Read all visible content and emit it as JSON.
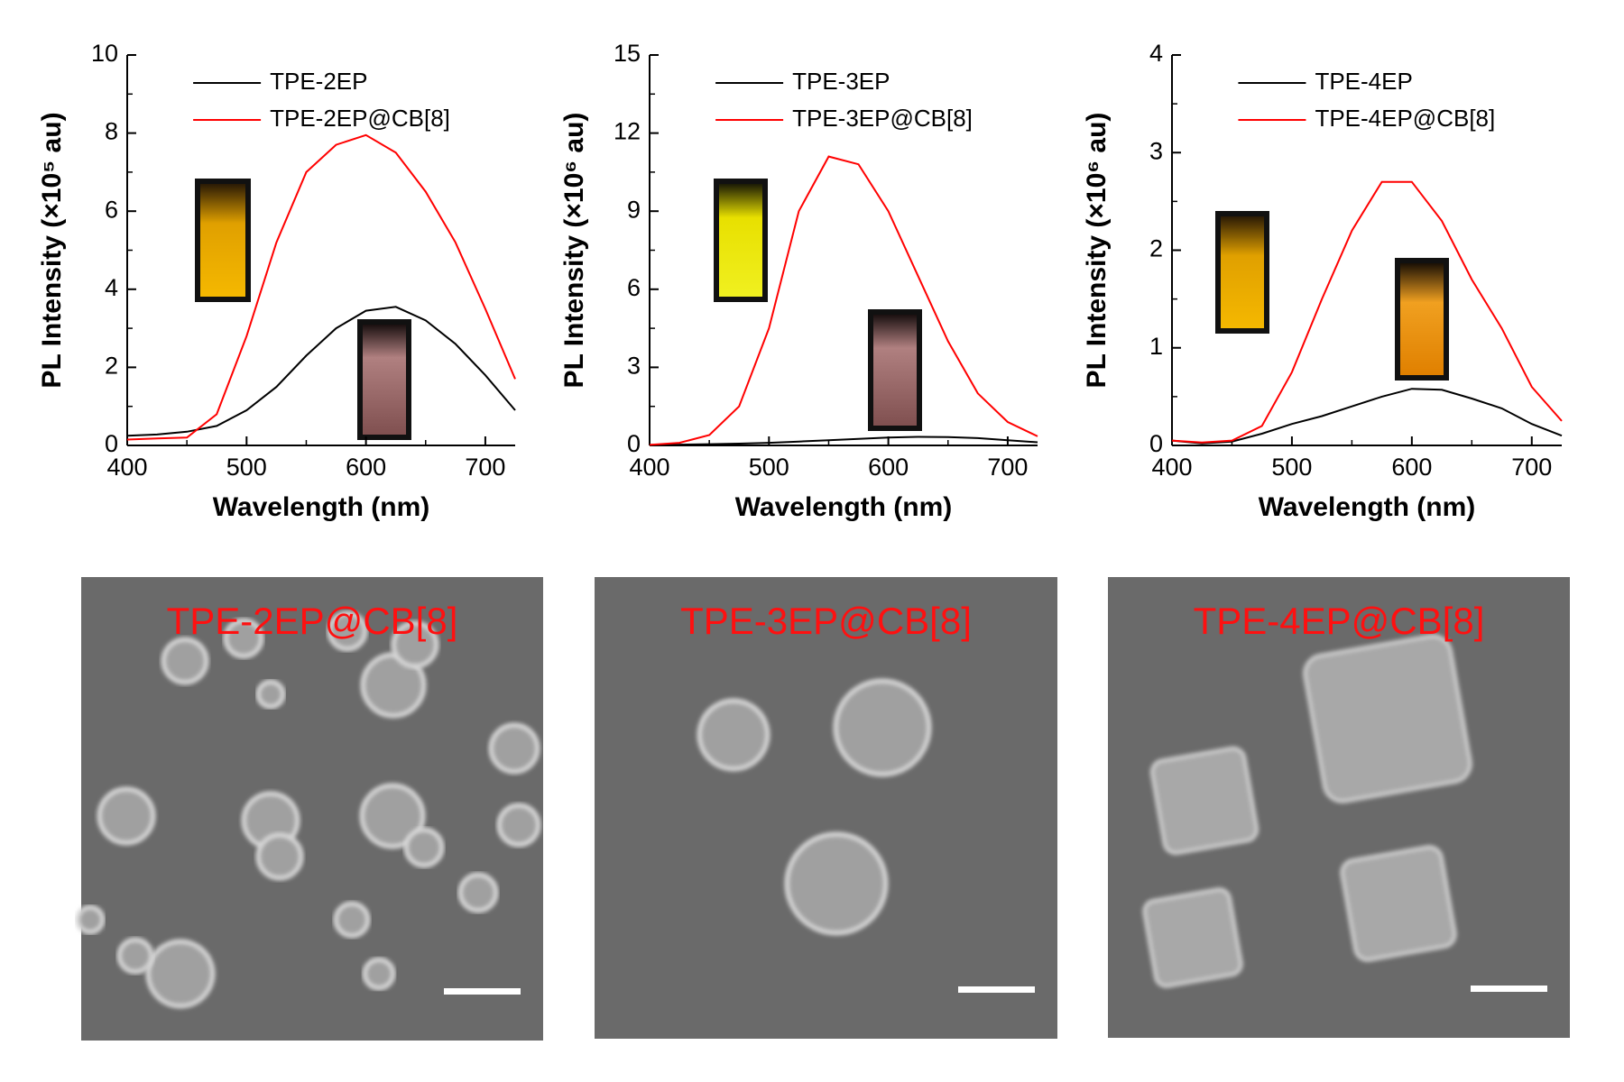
{
  "chart_data": [
    {
      "type": "line",
      "x": [
        400,
        425,
        450,
        475,
        500,
        525,
        550,
        575,
        600,
        625,
        650,
        675,
        700,
        725
      ],
      "xlabel": "Wavelength (nm)",
      "ylabel": "PL Intensity (×10⁵ au)",
      "xlim": [
        400,
        725
      ],
      "xticks": [
        400,
        500,
        600,
        700
      ],
      "ylim": [
        0,
        10
      ],
      "yticks": [
        0,
        2,
        4,
        6,
        8,
        10
      ],
      "legend": "top",
      "series": [
        {
          "name": "TPE-2EP",
          "color": "#000000",
          "values": [
            0.25,
            0.28,
            0.35,
            0.5,
            0.9,
            1.5,
            2.3,
            3.0,
            3.45,
            3.55,
            3.2,
            2.6,
            1.8,
            0.9
          ]
        },
        {
          "name": "TPE-2EP@CB[8]",
          "color": "#ff0000",
          "values": [
            0.15,
            0.18,
            0.2,
            0.8,
            2.8,
            5.2,
            7.0,
            7.7,
            7.95,
            7.5,
            6.5,
            5.2,
            3.5,
            1.7
          ]
        }
      ]
    },
    {
      "type": "line",
      "x": [
        400,
        425,
        450,
        475,
        500,
        525,
        550,
        575,
        600,
        625,
        650,
        675,
        700,
        725
      ],
      "xlabel": "Wavelength (nm)",
      "ylabel": "PL Intensity (×10⁶ au)",
      "xlim": [
        400,
        725
      ],
      "xticks": [
        400,
        500,
        600,
        700
      ],
      "ylim": [
        0,
        15
      ],
      "yticks": [
        0,
        3,
        6,
        9,
        12,
        15
      ],
      "legend": "top",
      "series": [
        {
          "name": "TPE-3EP",
          "color": "#000000",
          "values": [
            0.02,
            0.03,
            0.05,
            0.07,
            0.1,
            0.15,
            0.2,
            0.25,
            0.3,
            0.33,
            0.32,
            0.28,
            0.2,
            0.12
          ]
        },
        {
          "name": "TPE-3EP@CB[8]",
          "color": "#ff0000",
          "values": [
            0.02,
            0.1,
            0.4,
            1.5,
            4.5,
            9.0,
            11.1,
            10.8,
            9.0,
            6.5,
            4.0,
            2.0,
            0.9,
            0.35
          ]
        }
      ]
    },
    {
      "type": "line",
      "x": [
        400,
        425,
        450,
        475,
        500,
        525,
        550,
        575,
        600,
        625,
        650,
        675,
        700,
        725
      ],
      "xlabel": "Wavelength (nm)",
      "ylabel": "PL Intensity (×10⁶ au)",
      "xlim": [
        400,
        725
      ],
      "xticks": [
        400,
        500,
        600,
        700
      ],
      "ylim": [
        0,
        4
      ],
      "yticks": [
        0,
        1,
        2,
        3,
        4
      ],
      "legend": "top",
      "series": [
        {
          "name": "TPE-4EP",
          "color": "#000000",
          "values": [
            0.05,
            0.02,
            0.04,
            0.12,
            0.22,
            0.3,
            0.4,
            0.5,
            0.58,
            0.57,
            0.48,
            0.38,
            0.22,
            0.1
          ]
        },
        {
          "name": "TPE-4EP@CB[8]",
          "color": "#ff0000",
          "values": [
            0.05,
            0.03,
            0.05,
            0.2,
            0.75,
            1.5,
            2.2,
            2.7,
            2.7,
            2.3,
            1.7,
            1.2,
            0.6,
            0.25
          ]
        }
      ]
    }
  ],
  "images": [
    {
      "label": "TPE-2EP@CB[8]"
    },
    {
      "label": "TPE-3EP@CB[8]"
    },
    {
      "label": "TPE-4EP@CB[8]"
    }
  ]
}
